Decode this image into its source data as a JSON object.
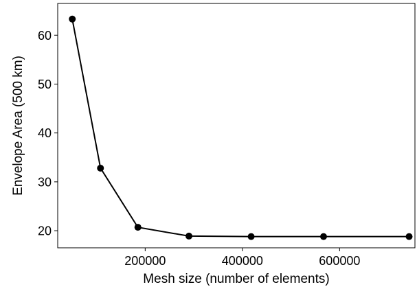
{
  "chart_data": {
    "type": "line",
    "xlabel": "Mesh size (number of elements)",
    "ylabel": "Envelope Area  (500 km)",
    "xlim": [
      20000,
      755000
    ],
    "ylim": [
      16.5,
      66.5
    ],
    "xticks": [
      200000,
      400000,
      600000
    ],
    "yticks": [
      20,
      30,
      40,
      50,
      60
    ],
    "grid": false,
    "series": [
      {
        "color": "#000000",
        "marker": "circle",
        "points": [
          {
            "x": 50000,
            "y": 63.3
          },
          {
            "x": 108000,
            "y": 32.8
          },
          {
            "x": 185000,
            "y": 20.7
          },
          {
            "x": 290000,
            "y": 18.9
          },
          {
            "x": 418000,
            "y": 18.8
          },
          {
            "x": 567000,
            "y": 18.8
          },
          {
            "x": 743000,
            "y": 18.8
          }
        ]
      }
    ]
  }
}
